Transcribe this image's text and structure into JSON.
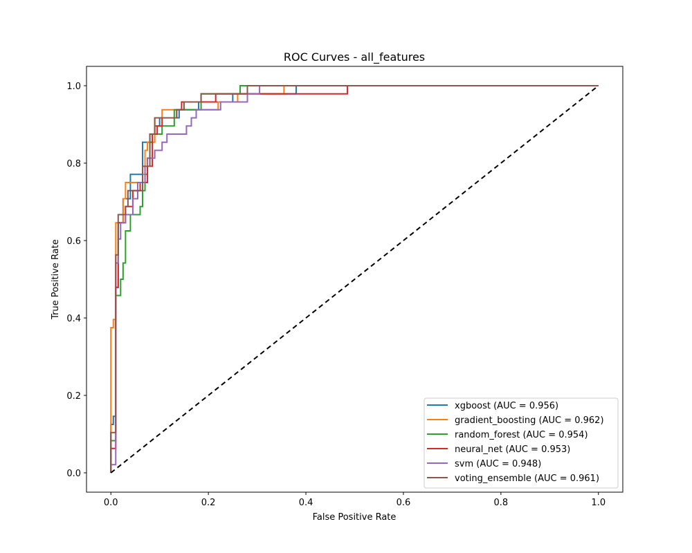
{
  "chart_data": {
    "type": "line",
    "title": "ROC Curves - all_features",
    "xlabel": "False Positive Rate",
    "ylabel": "True Positive Rate",
    "xlim": [
      -0.05,
      1.05
    ],
    "ylim": [
      -0.05,
      1.05
    ],
    "xticks": [
      "0.0",
      "0.2",
      "0.4",
      "0.6",
      "0.8",
      "1.0"
    ],
    "yticks": [
      "0.0",
      "0.2",
      "0.4",
      "0.6",
      "0.8",
      "1.0"
    ],
    "legend_position": "lower-right",
    "grid": false,
    "series": [
      {
        "name": "xgboost (AUC = 0.956)",
        "color": "#1f77b4",
        "points": [
          [
            0,
            0
          ],
          [
            0,
            0.125
          ],
          [
            0.005,
            0.125
          ],
          [
            0.005,
            0.146
          ],
          [
            0.01,
            0.146
          ],
          [
            0.01,
            0.479
          ],
          [
            0.015,
            0.479
          ],
          [
            0.015,
            0.646
          ],
          [
            0.025,
            0.646
          ],
          [
            0.025,
            0.708
          ],
          [
            0.04,
            0.708
          ],
          [
            0.04,
            0.771
          ],
          [
            0.065,
            0.771
          ],
          [
            0.065,
            0.854
          ],
          [
            0.08,
            0.854
          ],
          [
            0.08,
            0.875
          ],
          [
            0.09,
            0.875
          ],
          [
            0.09,
            0.896
          ],
          [
            0.1,
            0.896
          ],
          [
            0.1,
            0.917
          ],
          [
            0.14,
            0.917
          ],
          [
            0.14,
            0.938
          ],
          [
            0.18,
            0.938
          ],
          [
            0.18,
            0.958
          ],
          [
            0.25,
            0.958
          ],
          [
            0.25,
            0.979
          ],
          [
            0.38,
            0.979
          ],
          [
            0.38,
            1.0
          ],
          [
            1.0,
            1.0
          ]
        ]
      },
      {
        "name": "gradient_boosting (AUC = 0.962)",
        "color": "#ff7f0e",
        "points": [
          [
            0,
            0
          ],
          [
            0,
            0.375
          ],
          [
            0.005,
            0.375
          ],
          [
            0.005,
            0.396
          ],
          [
            0.01,
            0.396
          ],
          [
            0.01,
            0.646
          ],
          [
            0.025,
            0.646
          ],
          [
            0.025,
            0.708
          ],
          [
            0.03,
            0.708
          ],
          [
            0.03,
            0.75
          ],
          [
            0.065,
            0.75
          ],
          [
            0.065,
            0.771
          ],
          [
            0.07,
            0.771
          ],
          [
            0.07,
            0.833
          ],
          [
            0.075,
            0.833
          ],
          [
            0.075,
            0.854
          ],
          [
            0.09,
            0.854
          ],
          [
            0.09,
            0.917
          ],
          [
            0.105,
            0.917
          ],
          [
            0.105,
            0.938
          ],
          [
            0.22,
            0.938
          ],
          [
            0.22,
            0.958
          ],
          [
            0.26,
            0.958
          ],
          [
            0.26,
            0.979
          ],
          [
            0.355,
            0.979
          ],
          [
            0.355,
            1.0
          ],
          [
            1.0,
            1.0
          ]
        ]
      },
      {
        "name": "random_forest (AUC = 0.954)",
        "color": "#2ca02c",
        "points": [
          [
            0,
            0
          ],
          [
            0,
            0.083
          ],
          [
            0.01,
            0.083
          ],
          [
            0.01,
            0.458
          ],
          [
            0.02,
            0.458
          ],
          [
            0.02,
            0.5
          ],
          [
            0.025,
            0.5
          ],
          [
            0.025,
            0.542
          ],
          [
            0.03,
            0.542
          ],
          [
            0.03,
            0.625
          ],
          [
            0.04,
            0.625
          ],
          [
            0.04,
            0.667
          ],
          [
            0.06,
            0.667
          ],
          [
            0.06,
            0.688
          ],
          [
            0.065,
            0.688
          ],
          [
            0.065,
            0.729
          ],
          [
            0.07,
            0.729
          ],
          [
            0.07,
            0.771
          ],
          [
            0.075,
            0.771
          ],
          [
            0.075,
            0.813
          ],
          [
            0.08,
            0.813
          ],
          [
            0.08,
            0.854
          ],
          [
            0.085,
            0.854
          ],
          [
            0.085,
            0.875
          ],
          [
            0.105,
            0.875
          ],
          [
            0.105,
            0.896
          ],
          [
            0.13,
            0.896
          ],
          [
            0.13,
            0.938
          ],
          [
            0.185,
            0.938
          ],
          [
            0.185,
            0.979
          ],
          [
            0.265,
            0.979
          ],
          [
            0.265,
            1.0
          ],
          [
            1.0,
            1.0
          ]
        ]
      },
      {
        "name": "neural_net (AUC = 0.953)",
        "color": "#d62728",
        "points": [
          [
            0,
            0
          ],
          [
            0,
            0.063
          ],
          [
            0.01,
            0.063
          ],
          [
            0.01,
            0.479
          ],
          [
            0.015,
            0.479
          ],
          [
            0.015,
            0.646
          ],
          [
            0.03,
            0.646
          ],
          [
            0.03,
            0.688
          ],
          [
            0.045,
            0.688
          ],
          [
            0.045,
            0.729
          ],
          [
            0.06,
            0.729
          ],
          [
            0.06,
            0.75
          ],
          [
            0.075,
            0.75
          ],
          [
            0.075,
            0.792
          ],
          [
            0.085,
            0.792
          ],
          [
            0.085,
            0.875
          ],
          [
            0.095,
            0.875
          ],
          [
            0.095,
            0.896
          ],
          [
            0.105,
            0.896
          ],
          [
            0.105,
            0.917
          ],
          [
            0.135,
            0.917
          ],
          [
            0.135,
            0.938
          ],
          [
            0.145,
            0.938
          ],
          [
            0.145,
            0.958
          ],
          [
            0.215,
            0.958
          ],
          [
            0.215,
            0.979
          ],
          [
            0.485,
            0.979
          ],
          [
            0.485,
            1.0
          ],
          [
            1.0,
            1.0
          ]
        ]
      },
      {
        "name": "svm (AUC = 0.948)",
        "color": "#9467bd",
        "points": [
          [
            0,
            0
          ],
          [
            0,
            0.021
          ],
          [
            0.01,
            0.021
          ],
          [
            0.01,
            0.542
          ],
          [
            0.015,
            0.542
          ],
          [
            0.015,
            0.604
          ],
          [
            0.02,
            0.604
          ],
          [
            0.02,
            0.646
          ],
          [
            0.03,
            0.646
          ],
          [
            0.03,
            0.667
          ],
          [
            0.045,
            0.667
          ],
          [
            0.045,
            0.708
          ],
          [
            0.055,
            0.708
          ],
          [
            0.055,
            0.75
          ],
          [
            0.07,
            0.75
          ],
          [
            0.07,
            0.792
          ],
          [
            0.075,
            0.792
          ],
          [
            0.075,
            0.813
          ],
          [
            0.09,
            0.813
          ],
          [
            0.09,
            0.833
          ],
          [
            0.105,
            0.833
          ],
          [
            0.105,
            0.854
          ],
          [
            0.115,
            0.854
          ],
          [
            0.115,
            0.875
          ],
          [
            0.155,
            0.875
          ],
          [
            0.155,
            0.896
          ],
          [
            0.165,
            0.896
          ],
          [
            0.165,
            0.917
          ],
          [
            0.175,
            0.917
          ],
          [
            0.175,
            0.938
          ],
          [
            0.225,
            0.938
          ],
          [
            0.225,
            0.958
          ],
          [
            0.28,
            0.958
          ],
          [
            0.28,
            0.979
          ],
          [
            0.305,
            0.979
          ],
          [
            0.305,
            1.0
          ],
          [
            1.0,
            1.0
          ]
        ]
      },
      {
        "name": "voting_ensemble (AUC = 0.961)",
        "color": "#8c564b",
        "points": [
          [
            0,
            0
          ],
          [
            0,
            0.104
          ],
          [
            0.01,
            0.104
          ],
          [
            0.01,
            0.563
          ],
          [
            0.015,
            0.563
          ],
          [
            0.015,
            0.667
          ],
          [
            0.03,
            0.667
          ],
          [
            0.03,
            0.688
          ],
          [
            0.035,
            0.688
          ],
          [
            0.035,
            0.729
          ],
          [
            0.065,
            0.729
          ],
          [
            0.065,
            0.792
          ],
          [
            0.08,
            0.792
          ],
          [
            0.08,
            0.875
          ],
          [
            0.09,
            0.875
          ],
          [
            0.09,
            0.917
          ],
          [
            0.135,
            0.917
          ],
          [
            0.135,
            0.938
          ],
          [
            0.15,
            0.938
          ],
          [
            0.15,
            0.958
          ],
          [
            0.185,
            0.958
          ],
          [
            0.185,
            0.979
          ],
          [
            0.28,
            0.979
          ],
          [
            0.28,
            1.0
          ],
          [
            1.0,
            1.0
          ]
        ]
      }
    ],
    "reference_line": {
      "points": [
        [
          0,
          0
        ],
        [
          1,
          1
        ]
      ],
      "color": "#000000",
      "dashed": true
    }
  }
}
